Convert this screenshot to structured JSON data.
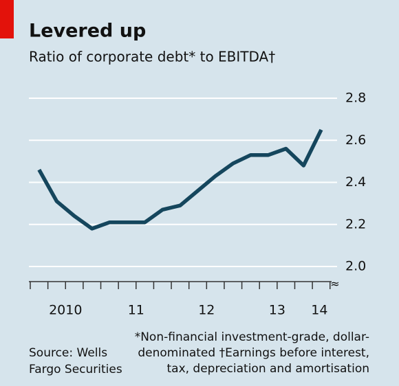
{
  "chart_data": {
    "type": "line",
    "title": "Levered up",
    "subtitle": "Ratio of corporate debt* to EBITDA†",
    "x": [
      2010.125,
      2010.375,
      2010.625,
      2010.875,
      2011.125,
      2011.375,
      2011.625,
      2011.875,
      2012.125,
      2012.375,
      2012.625,
      2012.875,
      2013.125,
      2013.375,
      2013.625,
      2013.875,
      2014.125
    ],
    "series": [
      {
        "color": "#15465d",
        "values": [
          2.46,
          2.31,
          2.24,
          2.18,
          2.21,
          2.21,
          2.21,
          2.27,
          2.29,
          2.36,
          2.43,
          2.49,
          2.53,
          2.53,
          2.56,
          2.48,
          2.65
        ]
      }
    ],
    "xlim": [
      2010,
      2014.35
    ],
    "xticks": [
      2010,
      2010.25,
      2010.5,
      2010.75,
      2011,
      2011.25,
      2011.5,
      2011.75,
      2012,
      2012.25,
      2012.5,
      2012.75,
      2013,
      2013.25,
      2013.5,
      2013.75,
      2014,
      2014.25
    ],
    "xlabels": [
      {
        "value": 2010.5,
        "label": "2010"
      },
      {
        "value": 2011.5,
        "label": "11"
      },
      {
        "value": 2012.5,
        "label": "12"
      },
      {
        "value": 2013.5,
        "label": "13"
      },
      {
        "value": 2014.1,
        "label": "14"
      }
    ],
    "ylim": [
      2.0,
      2.8
    ],
    "yticks": [
      {
        "value": 2.0,
        "label": "2.0"
      },
      {
        "value": 2.2,
        "label": "2.2"
      },
      {
        "value": 2.4,
        "label": "2.4"
      },
      {
        "value": 2.6,
        "label": "2.6"
      },
      {
        "value": 2.8,
        "label": "2.8"
      }
    ],
    "grid": true,
    "source": [
      "Source: Wells",
      "Fargo Securities"
    ],
    "footnote": [
      "*Non-financial investment-grade, dollar-",
      "denominated  †Earnings before interest,",
      "tax, depreciation and amortisation"
    ]
  }
}
